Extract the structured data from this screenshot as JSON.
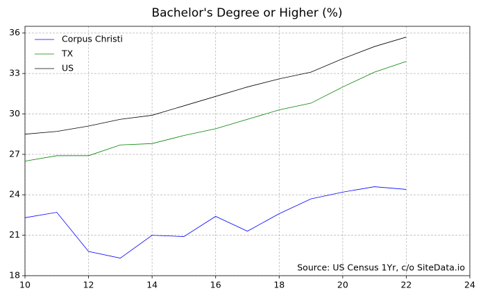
{
  "chart_data": {
    "type": "line",
    "title": "Bachelor's Degree or Higher (%)",
    "x": [
      10,
      11,
      12,
      13,
      14,
      15,
      16,
      17,
      18,
      19,
      20,
      21,
      22
    ],
    "series": [
      {
        "name": "Corpus Christi",
        "color": "#0000ff",
        "values": [
          22.3,
          22.7,
          19.8,
          19.3,
          21.0,
          20.9,
          22.4,
          21.3,
          22.6,
          23.7,
          24.2,
          24.6,
          24.4
        ]
      },
      {
        "name": "TX",
        "color": "#008000",
        "values": [
          26.5,
          26.9,
          26.9,
          27.7,
          27.8,
          28.4,
          28.9,
          29.6,
          30.3,
          30.8,
          32.0,
          33.1,
          33.9
        ]
      },
      {
        "name": "US",
        "color": "#000000",
        "values": [
          28.5,
          28.7,
          29.1,
          29.6,
          29.9,
          30.6,
          31.3,
          32.0,
          32.6,
          33.1,
          34.1,
          35.0,
          35.7
        ]
      }
    ],
    "xlim": [
      10,
      24
    ],
    "xticks": [
      10,
      12,
      14,
      16,
      18,
      20,
      22,
      24
    ],
    "ylim": [
      18,
      36.5
    ],
    "yticks": [
      18,
      21,
      24,
      27,
      30,
      33,
      36
    ],
    "grid": true,
    "legend": "upper left",
    "annotation": "Source: US Census 1Yr, c/o SiteData.io"
  }
}
